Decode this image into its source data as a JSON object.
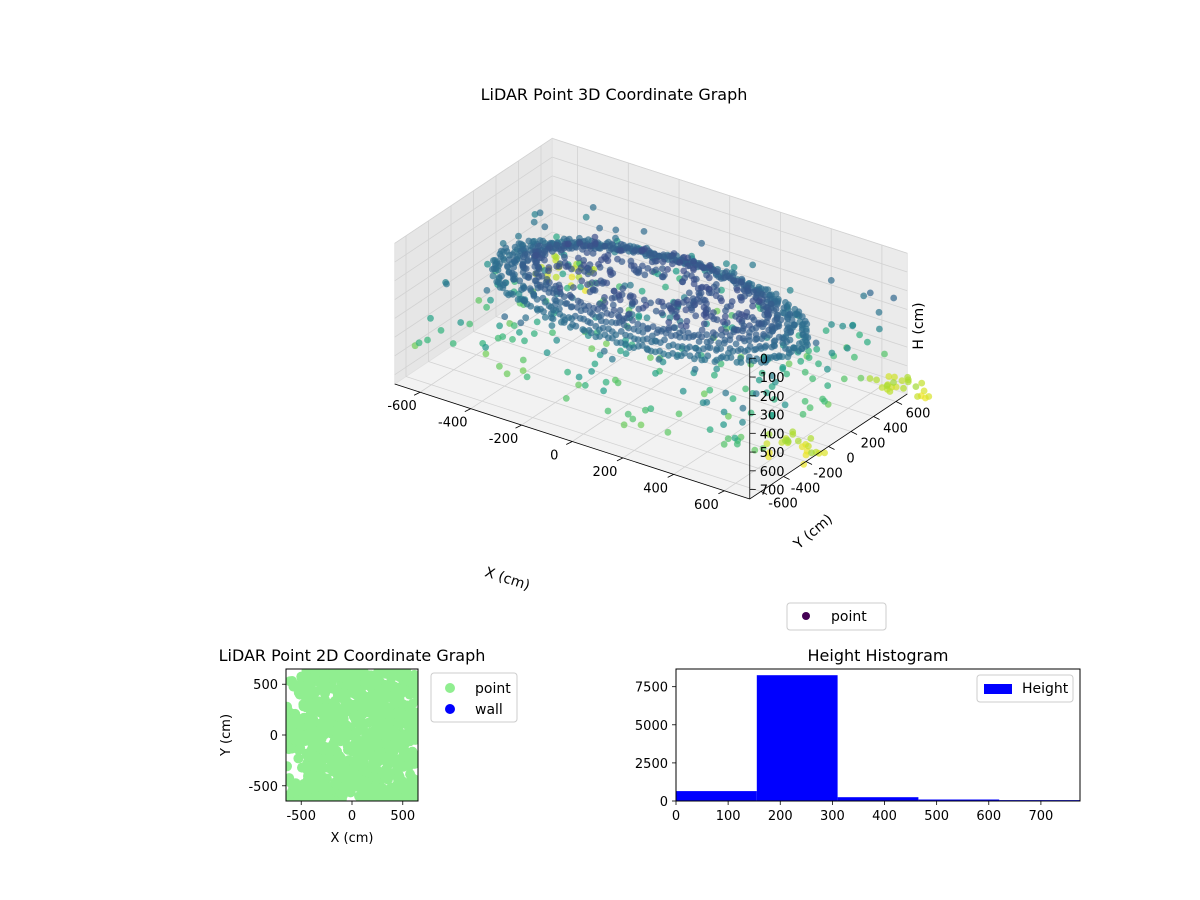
{
  "chart_data": [
    {
      "type": "scatter",
      "subtype": "3d",
      "title": "LiDAR Point 3D Coordinate Graph",
      "xlabel": "X (cm)",
      "ylabel": "Y (cm)",
      "zlabel": "H (cm)",
      "x_ticks": [
        -600,
        -400,
        -200,
        0,
        200,
        400,
        600
      ],
      "y_ticks": [
        -600,
        -400,
        -200,
        0,
        200,
        400,
        600
      ],
      "z_ticks": [
        0,
        100,
        200,
        300,
        400,
        500,
        600,
        700
      ],
      "xlim": [
        -700,
        700
      ],
      "ylim": [
        -700,
        700
      ],
      "zlim": [
        0,
        750
      ],
      "z_inverted": true,
      "grid": true,
      "colormap": "viridis",
      "legend": {
        "position": "lower-right",
        "entries": [
          {
            "label": "point",
            "color": "#440154"
          }
        ]
      },
      "series": [
        {
          "name": "point",
          "description_of_distribution": "dense ring at ~200 cm height, scattered wall points at 300-750 cm",
          "rings": [
            {
              "radius": 430,
              "h": 220
            },
            {
              "radius": 470,
              "h": 235
            },
            {
              "radius": 520,
              "h": 260
            },
            {
              "radius": 580,
              "h": 280
            }
          ]
        }
      ]
    },
    {
      "type": "scatter",
      "title": "LiDAR Point 2D Coordinate Graph",
      "xlabel": "X (cm)",
      "ylabel": "Y (cm)",
      "x_ticks": [
        -500,
        0,
        500
      ],
      "y_ticks": [
        -500,
        0,
        500
      ],
      "xlim": [
        -650,
        650
      ],
      "ylim": [
        -650,
        650
      ],
      "legend": {
        "position": "outside-right",
        "entries": [
          {
            "label": "point",
            "color": "#90ee90"
          },
          {
            "label": "wall",
            "color": "#0000ff"
          }
        ]
      }
    },
    {
      "type": "bar",
      "subtype": "histogram",
      "title": "Height Histogram",
      "bin_edges": [
        0,
        155,
        310,
        465,
        620,
        775
      ],
      "values": [
        650,
        8250,
        250,
        100,
        60
      ],
      "color": "#0000ff",
      "x_ticks": [
        0,
        100,
        200,
        300,
        400,
        500,
        600,
        700
      ],
      "y_ticks": [
        0,
        2500,
        5000,
        7500
      ],
      "xlim": [
        0,
        775
      ],
      "ylim": [
        0,
        8660
      ],
      "legend": {
        "position": "top-right",
        "entries": [
          {
            "label": "Height",
            "color": "#0000ff"
          }
        ]
      }
    }
  ]
}
